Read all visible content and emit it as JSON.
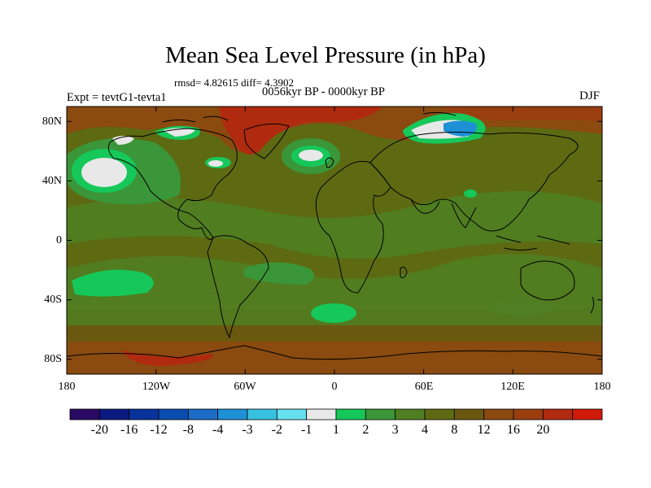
{
  "title": "Mean Sea Level Pressure (in hPa)",
  "stats": "rmsd= 4.82615 diff= 4.3902",
  "period": "0056kyr BP - 0000kyr BP",
  "experiment": "Expt = tevtG1-tevta1",
  "season": "DJF",
  "lat_labels": [
    "80N",
    "40N",
    "0",
    "40S",
    "80S"
  ],
  "lon_labels": [
    "180",
    "120W",
    "60W",
    "0",
    "60E",
    "120E",
    "180"
  ],
  "colorbar": {
    "colors": [
      "#2a0a62",
      "#0a1a80",
      "#07339a",
      "#0a4db0",
      "#1a6cc6",
      "#1e90d6",
      "#38c0e0",
      "#66e0ee",
      "#e8e8e8",
      "#16c75a",
      "#3a9638",
      "#4f7f22",
      "#5d6a12",
      "#6b5810",
      "#8a4a10",
      "#9a3e10",
      "#b02a10",
      "#d01a0a"
    ],
    "labels": [
      "-20",
      "-16",
      "-12",
      "-8",
      "-4",
      "-3",
      "-2",
      "-1",
      "1",
      "2",
      "3",
      "4",
      "8",
      "12",
      "16",
      "20"
    ]
  }
}
